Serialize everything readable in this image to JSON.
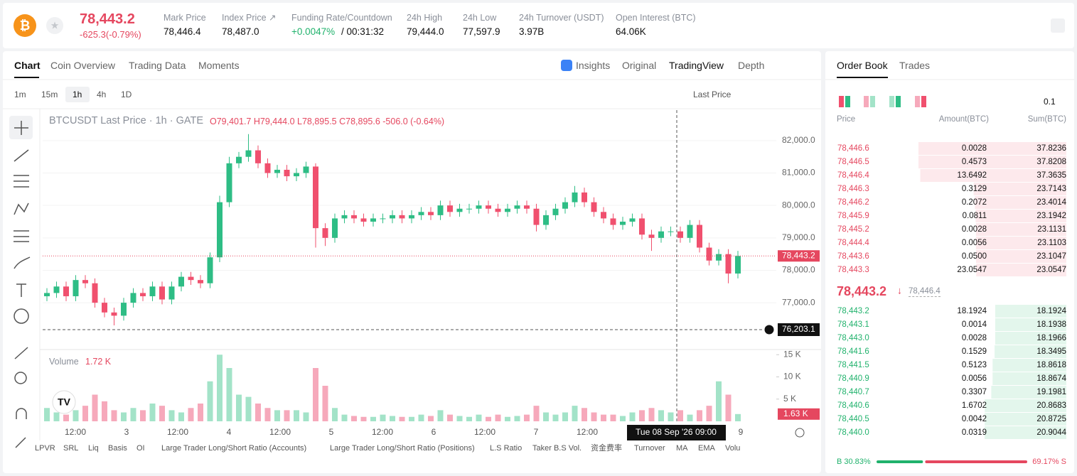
{
  "header": {
    "price": "78,443.2",
    "change": "-625.3(-0.79%)",
    "stats": [
      {
        "label": "Mark Price",
        "value": "78,446.4"
      },
      {
        "label": "Index Price ↗",
        "value": "78,487.0"
      },
      {
        "label": "Funding Rate/Countdown",
        "value": "+0.0047%",
        "extra": "/ 00:31:32"
      },
      {
        "label": "24h High",
        "value": "79,444.0"
      },
      {
        "label": "24h Low",
        "value": "77,597.9"
      },
      {
        "label": "24h Turnover (USDT)",
        "value": "3.97B"
      },
      {
        "label": "Open Interest (BTC)",
        "value": "64.06K"
      }
    ]
  },
  "tabs": [
    "Chart",
    "Coin Overview",
    "Trading Data",
    "Moments"
  ],
  "view_tabs": [
    "Insights",
    "Original",
    "TradingView",
    "Depth"
  ],
  "intervals": [
    "1m",
    "15m",
    "1h",
    "4h",
    "1D"
  ],
  "price_type": "Last Price",
  "chart_data": {
    "type": "candlestick",
    "title": "BTCUSDT Last Price · 1h · GATE",
    "ohlc_legend": "O79,401.7 H79,444.0 L78,895.5 C78,895.6 -506.0 (-0.64%)",
    "up_color": "#2ebd85",
    "down_color": "#f0506e",
    "volume_up_color": "#a3e3c8",
    "volume_down_color": "#f6a9bb",
    "open": [
      77200,
      77300,
      77500,
      77200,
      77700,
      77600,
      77000,
      76700,
      76600,
      77000,
      77300,
      77200,
      77500,
      77100,
      77500,
      77800,
      77700,
      77600,
      78400,
      80100,
      81300,
      81500,
      81700,
      81300,
      81000,
      81100,
      80900,
      81000,
      81200,
      79300,
      79000,
      79600,
      79700,
      79600,
      79500,
      79600,
      79600,
      79700,
      79600,
      79700,
      79800,
      79700,
      80000,
      79800,
      79900,
      79900,
      80000,
      79900,
      79800,
      79900,
      80000,
      79900,
      79400,
      79700,
      79900,
      80100,
      80400,
      80100,
      79800,
      79600,
      79400,
      79500,
      79600,
      79100,
      79000,
      79200,
      79200,
      79000,
      79400,
      78700,
      78300,
      78500,
      77900
    ],
    "high": [
      77450,
      77650,
      77650,
      77850,
      77850,
      77750,
      77150,
      76850,
      77150,
      77450,
      77450,
      77650,
      77650,
      77650,
      77950,
      77950,
      77850,
      78550,
      80300,
      81500,
      81650,
      82200,
      81850,
      81450,
      81250,
      81250,
      81150,
      81350,
      81300,
      79450,
      79750,
      79850,
      79850,
      79750,
      79750,
      79750,
      79850,
      79850,
      79850,
      79950,
      79950,
      80150,
      80150,
      80050,
      80050,
      80150,
      80150,
      80050,
      80050,
      80150,
      80150,
      80050,
      79850,
      80050,
      80250,
      80600,
      80550,
      80250,
      79950,
      79750,
      79650,
      79750,
      79750,
      79250,
      79350,
      79350,
      79350,
      79550,
      79550,
      78850,
      78650,
      78650,
      78600
    ],
    "low": [
      77050,
      77150,
      77050,
      77050,
      77450,
      76850,
      76550,
      76300,
      76450,
      76850,
      77050,
      77050,
      76950,
      76950,
      77350,
      77550,
      77450,
      77450,
      78250,
      79950,
      81150,
      81350,
      81150,
      80850,
      80850,
      80750,
      80750,
      80850,
      78700,
      78750,
      78850,
      79450,
      79450,
      79350,
      79350,
      79450,
      79450,
      79450,
      79450,
      79550,
      79550,
      79550,
      79650,
      79650,
      79750,
      79750,
      79750,
      79650,
      79650,
      79750,
      79750,
      79200,
      79250,
      79550,
      79750,
      79950,
      79950,
      79650,
      79450,
      79250,
      79250,
      79350,
      78950,
      78600,
      78850,
      79050,
      78850,
      78850,
      78550,
      78150,
      78150,
      77600,
      77750
    ],
    "close": [
      77300,
      77500,
      77200,
      77700,
      77600,
      77000,
      76700,
      76600,
      77000,
      77300,
      77200,
      77500,
      77100,
      77500,
      77800,
      77700,
      77600,
      78400,
      80100,
      81300,
      81500,
      81700,
      81300,
      81000,
      81100,
      80900,
      81000,
      81200,
      79300,
      79000,
      79600,
      79700,
      79600,
      79500,
      79600,
      79600,
      79700,
      79600,
      79700,
      79800,
      79700,
      80000,
      79800,
      79900,
      79900,
      80000,
      79900,
      79800,
      79900,
      80000,
      79900,
      79400,
      79700,
      79900,
      80100,
      80400,
      80100,
      79800,
      79600,
      79400,
      79500,
      79600,
      79100,
      79000,
      79200,
      79200,
      79000,
      79400,
      78700,
      78300,
      78500,
      77900,
      78443.2
    ],
    "volume": [
      3000,
      2000,
      1500,
      2500,
      3500,
      6000,
      4500,
      2500,
      2000,
      3000,
      2500,
      4000,
      3500,
      2500,
      2000,
      3000,
      4000,
      9000,
      15000,
      12000,
      6000,
      5500,
      4000,
      3000,
      2500,
      2500,
      2500,
      2000,
      12000,
      8000,
      3000,
      1500,
      1200,
      1000,
      1000,
      1500,
      1200,
      1000,
      1000,
      1500,
      1200,
      2500,
      1500,
      1200,
      1000,
      1500,
      1000,
      1500,
      1000,
      1200,
      1500,
      3500,
      2000,
      1500,
      2000,
      3500,
      3000,
      2000,
      1500,
      1500,
      1200,
      2000,
      2500,
      3000,
      2500,
      2000,
      2500,
      1500,
      2500,
      3500,
      9000,
      6000,
      1630
    ],
    "last_price_label": "78,443.2",
    "last_volume_label": "1.63 K",
    "volume_title": "Volume",
    "volume_legend": "1.72 K",
    "ylim": [
      75600,
      82940
    ],
    "yticks": [
      {
        "value": 77000,
        "label": "77,000.0"
      },
      {
        "value": 78000,
        "label": "78,000.0"
      },
      {
        "value": 79000,
        "label": "79,000.0"
      },
      {
        "value": 80000,
        "label": "80,000.0"
      },
      {
        "value": 81000,
        "label": "81,000.0"
      },
      {
        "value": 82000,
        "label": "82,000.0"
      }
    ],
    "volume_ylim": [
      0,
      16000
    ],
    "volume_yticks": [
      {
        "value": 5000,
        "label": "5 K"
      },
      {
        "value": 10000,
        "label": "10 K"
      },
      {
        "value": 15000,
        "label": "15 K"
      }
    ],
    "x_labels": [
      "12:00",
      "3",
      "12:00",
      "4",
      "12:00",
      "5",
      "12:00",
      "6",
      "12:00",
      "7",
      "12:00",
      "9"
    ],
    "crosshair_price": "76,203.1",
    "crosshair_time": "Tue 08 Sep '26  09:00"
  },
  "indicators": [
    "LPVR",
    "SRL",
    "Liq",
    "Basis",
    "OI",
    "Large Trader Long/Short Ratio (Accounts)",
    "Large Trader Long/Short Ratio (Positions)",
    "L.S Ratio",
    "Taker B.S Vol.",
    "资金费率",
    "Turnover",
    "MA",
    "EMA",
    "Volu"
  ],
  "order_book": {
    "tabs": [
      "Order Book",
      "Trades"
    ],
    "precision": "0.1",
    "columns": [
      "Price",
      "Amount(BTC)",
      "Sum(BTC)"
    ],
    "asks": [
      {
        "price": "78,446.6",
        "amount": 0.0028,
        "sum": 37.8236
      },
      {
        "price": "78,446.5",
        "amount": 0.4573,
        "sum": 37.8208
      },
      {
        "price": "78,446.4",
        "amount": 13.6492,
        "sum": 37.3635
      },
      {
        "price": "78,446.3",
        "amount": 0.3129,
        "sum": 23.7143
      },
      {
        "price": "78,446.2",
        "amount": 0.2072,
        "sum": 23.4014
      },
      {
        "price": "78,445.9",
        "amount": 0.0811,
        "sum": 23.1942
      },
      {
        "price": "78,445.2",
        "amount": 0.0028,
        "sum": 23.1131
      },
      {
        "price": "78,444.4",
        "amount": 0.0056,
        "sum": 23.1103
      },
      {
        "price": "78,443.6",
        "amount": 0.05,
        "amount_label": "0.0500",
        "sum": 23.1047
      },
      {
        "price": "78,443.3",
        "amount": 23.0547,
        "sum": 23.0547
      }
    ],
    "last": "78,443.2",
    "mark": "78,446.4",
    "bids": [
      {
        "price": "78,443.2",
        "amount": 18.1924,
        "sum": 18.1924
      },
      {
        "price": "78,443.1",
        "amount": 0.0014,
        "sum": 18.1938
      },
      {
        "price": "78,443.0",
        "amount": 0.0028,
        "sum": 18.1966
      },
      {
        "price": "78,441.6",
        "amount": 0.1529,
        "sum": 18.3495
      },
      {
        "price": "78,441.5",
        "amount": 0.5123,
        "sum": 18.8618
      },
      {
        "price": "78,440.9",
        "amount": 0.0056,
        "sum": 18.8674
      },
      {
        "price": "78,440.7",
        "amount": 0.3307,
        "sum": 19.1981
      },
      {
        "price": "78,440.6",
        "amount": 1.6702,
        "sum": 20.8683
      },
      {
        "price": "78,440.5",
        "amount": 0.0042,
        "sum": 20.8725
      },
      {
        "price": "78,440.0",
        "amount": 0.0319,
        "sum": 20.9044
      }
    ],
    "buy": 30.83,
    "buy_label": "B 30.83%",
    "sell": 69.17,
    "sell_label": "69.17% S"
  }
}
